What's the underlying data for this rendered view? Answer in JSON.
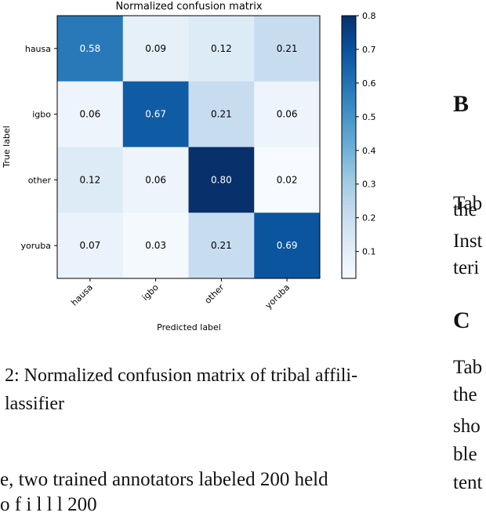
{
  "chart_data": {
    "type": "heatmap",
    "title": "Normalized confusion matrix",
    "xlabel": "Predicted label",
    "ylabel": "True label",
    "rows": [
      "hausa",
      "igbo",
      "other",
      "yoruba"
    ],
    "columns": [
      "hausa",
      "igbo",
      "other",
      "yoruba"
    ],
    "values": [
      [
        0.58,
        0.09,
        0.12,
        0.21
      ],
      [
        0.06,
        0.67,
        0.21,
        0.06
      ],
      [
        0.12,
        0.06,
        0.8,
        0.02
      ],
      [
        0.07,
        0.03,
        0.21,
        0.69
      ]
    ],
    "cell_labels": [
      [
        "0.58",
        "0.09",
        "0.12",
        "0.21"
      ],
      [
        "0.06",
        "0.67",
        "0.21",
        "0.06"
      ],
      [
        "0.12",
        "0.06",
        "0.80",
        "0.02"
      ],
      [
        "0.07",
        "0.03",
        "0.21",
        "0.69"
      ]
    ],
    "colorbar": {
      "min": 0.02,
      "max": 0.8,
      "ticks": [
        0.1,
        0.2,
        0.3,
        0.4,
        0.5,
        0.6,
        0.7,
        0.8
      ],
      "tick_labels": [
        "0.1",
        "0.2",
        "0.3",
        "0.4",
        "0.5",
        "0.6",
        "0.7",
        "0.8"
      ],
      "colormap": "Blues"
    }
  },
  "caption": {
    "line1": "2: Normalized confusion matrix of tribal affili-",
    "line2": "lassifier"
  },
  "body_text": {
    "line1": "e,  two  trained  annotators  labeled  200  held",
    "line2": "o          f         i    l         l       l   200"
  },
  "right_column": {
    "heading_b": "B",
    "b_lines": [
      "Tab",
      "the",
      "Inst",
      "teri"
    ],
    "heading_c": "C",
    "c_lines": [
      "Tab",
      "the",
      "sho",
      "ble",
      "tent"
    ]
  },
  "colors": {
    "low": "#f7fbff",
    "high": "#08306b",
    "text_dark": "#000000",
    "text_light": "#ffffff"
  }
}
